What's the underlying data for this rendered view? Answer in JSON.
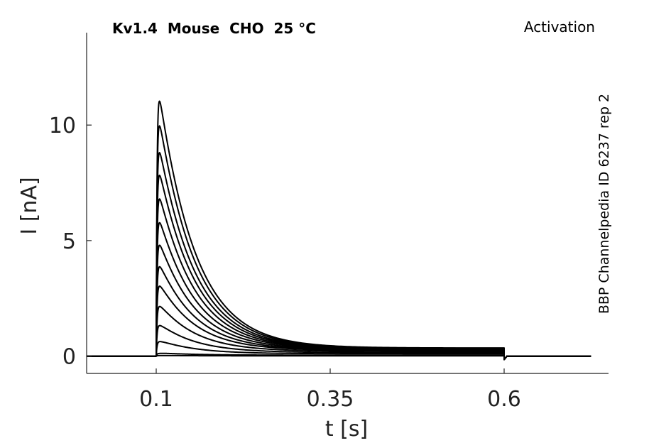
{
  "chart_data": {
    "type": "line",
    "title": "Kv1.4  Mouse  CHO  25 °C",
    "subtitle": "Activation",
    "side_note": "BBP Channelpedia ID 6237 rep 2",
    "xlabel": "t [s]",
    "ylabel": "I [nA]",
    "xlim": [
      0.0,
      0.75
    ],
    "ylim": [
      -0.75,
      14.0
    ],
    "xticks": [
      0.1,
      0.35,
      0.6
    ],
    "xtick_labels": [
      "0.1",
      "0.35",
      "0.6"
    ],
    "yticks": [
      0,
      5,
      10
    ],
    "ytick_labels": [
      "0",
      "5",
      "10"
    ],
    "grid": false,
    "line_color": "#000000",
    "step_start": 0.1,
    "step_end": 0.6,
    "trace_end": 0.725,
    "series": [
      {
        "peak": 12.5,
        "tail": 0.35
      },
      {
        "peak": 11.3,
        "tail": 0.34
      },
      {
        "peak": 10.0,
        "tail": 0.33
      },
      {
        "peak": 8.9,
        "tail": 0.32
      },
      {
        "peak": 7.75,
        "tail": 0.31
      },
      {
        "peak": 6.6,
        "tail": 0.3
      },
      {
        "peak": 5.5,
        "tail": 0.28
      },
      {
        "peak": 4.45,
        "tail": 0.26
      },
      {
        "peak": 3.5,
        "tail": 0.24
      },
      {
        "peak": 2.5,
        "tail": 0.2
      },
      {
        "peak": 1.55,
        "tail": 0.15
      },
      {
        "peak": 0.75,
        "tail": 0.1
      },
      {
        "peak": 0.15,
        "tail": 0.04
      },
      {
        "peak": 0.03,
        "tail": 0.01
      }
    ]
  }
}
